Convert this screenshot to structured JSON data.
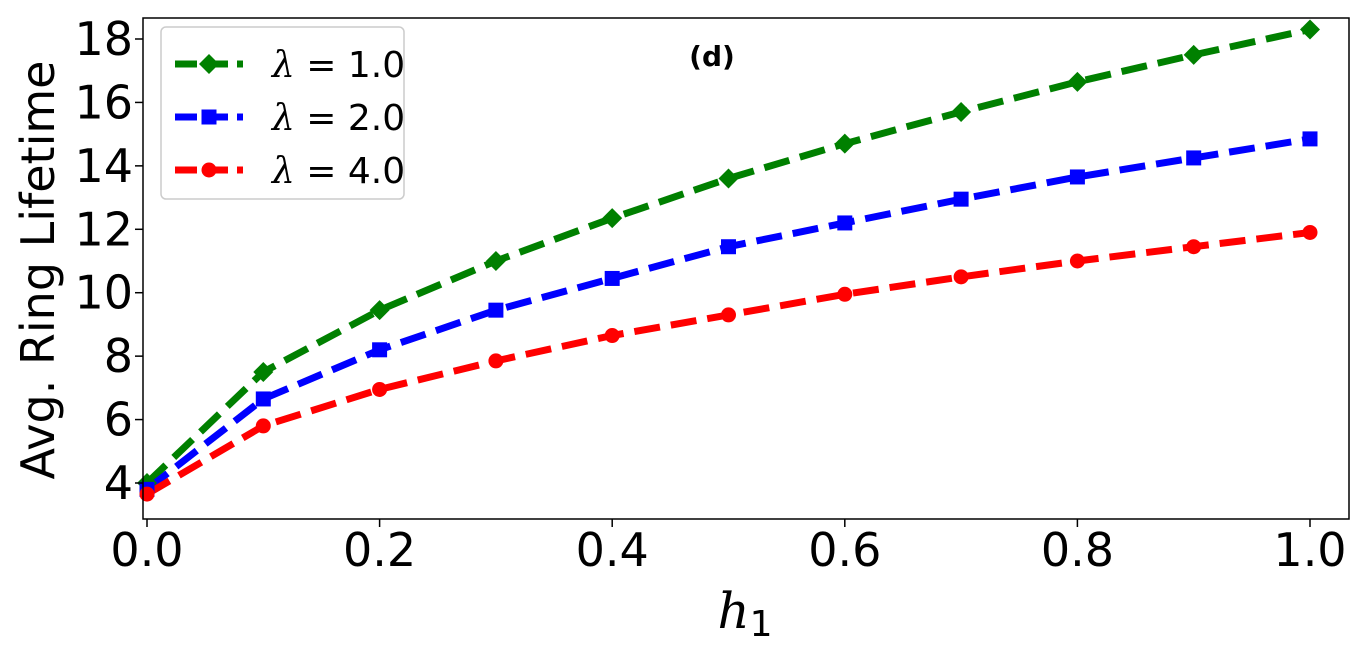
{
  "chart_data": {
    "type": "line",
    "title": "",
    "annotation": "(d)",
    "xlabel": "h",
    "xlabel_subscript": "1",
    "ylabel": "Avg. Ring Lifetime",
    "xlim": [
      0.0,
      1.0
    ],
    "ylim": [
      3.0,
      18.6
    ],
    "xticks": [
      "0.0",
      "0.2",
      "0.4",
      "0.6",
      "0.8",
      "1.0"
    ],
    "yticks": [
      "4",
      "6",
      "8",
      "10",
      "12",
      "14",
      "16",
      "18"
    ],
    "grid": false,
    "legend_position": "top-left",
    "x": [
      0.0,
      0.1,
      0.2,
      0.3,
      0.4,
      0.5,
      0.6,
      0.7,
      0.8,
      0.9,
      1.0
    ],
    "series": [
      {
        "name": "λ = 1.0",
        "name_symbol": "λ",
        "name_value": " = 1.0",
        "color": "#008000",
        "marker": "diamond",
        "values": [
          4.0,
          7.5,
          9.45,
          11.0,
          12.35,
          13.6,
          14.7,
          15.7,
          16.65,
          17.5,
          18.3
        ]
      },
      {
        "name": "λ = 2.0",
        "name_symbol": "λ",
        "name_value": " = 2.0",
        "color": "#0000ff",
        "marker": "square",
        "values": [
          3.8,
          6.65,
          8.2,
          9.45,
          10.45,
          11.45,
          12.2,
          12.95,
          13.65,
          14.25,
          14.85
        ]
      },
      {
        "name": "λ = 4.0",
        "name_symbol": "λ",
        "name_value": " = 4.0",
        "color": "#ff0000",
        "marker": "circle",
        "values": [
          3.65,
          5.8,
          6.95,
          7.85,
          8.65,
          9.3,
          9.95,
          10.5,
          11.0,
          11.45,
          11.9
        ]
      }
    ]
  }
}
